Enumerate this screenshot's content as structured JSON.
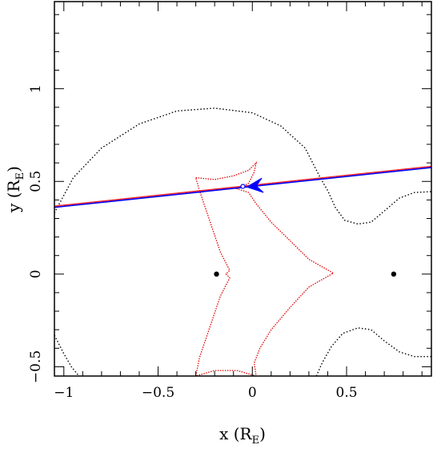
{
  "chart_data": {
    "type": "scatter",
    "xlabel": "x (R",
    "xlabel_sub": "E",
    "xlabel_close": ")",
    "ylabel": "y (R",
    "ylabel_sub": "E",
    "ylabel_close": ")",
    "xlim": [
      -1.05,
      0.95
    ],
    "ylim": [
      -0.55,
      1.47
    ],
    "xticks_major": [
      {
        "value": -1,
        "label": "−1"
      },
      {
        "value": -0.5,
        "label": "−0.5"
      },
      {
        "value": 0,
        "label": "0"
      },
      {
        "value": 0.5,
        "label": "0.5"
      }
    ],
    "yticks_major": [
      {
        "value": -0.5,
        "label": "−0.5"
      },
      {
        "value": 0,
        "label": "0"
      },
      {
        "value": 0.5,
        "label": "0.5"
      },
      {
        "value": 1,
        "label": "1"
      }
    ],
    "minor_tick_step": 0.1,
    "lenses": [
      {
        "x": -0.19,
        "y": 0.0
      },
      {
        "x": 0.75,
        "y": 0.0
      }
    ],
    "colors": {
      "critical": "#000000",
      "caustic": "#e00000",
      "track_red": "#ff2020",
      "track_blue": "#0000ff",
      "arrow": "#0000ff",
      "lens": "#000000"
    },
    "source_track": {
      "start": [
        -1.05,
        0.36
      ],
      "end": [
        0.95,
        0.575
      ],
      "arrow_tip": [
        -0.03,
        0.47
      ],
      "source_point": [
        -0.05,
        0.473
      ]
    },
    "critical_curve_outer": [
      [
        -1.05,
        0.33
      ],
      [
        -0.95,
        0.52
      ],
      [
        -0.8,
        0.68
      ],
      [
        -0.6,
        0.81
      ],
      [
        -0.4,
        0.88
      ],
      [
        -0.2,
        0.895
      ],
      [
        0.0,
        0.87
      ],
      [
        0.15,
        0.8
      ],
      [
        0.28,
        0.68
      ],
      [
        0.36,
        0.52
      ],
      [
        0.4,
        0.45
      ],
      [
        0.44,
        0.36
      ],
      [
        0.49,
        0.29
      ],
      [
        0.56,
        0.27
      ],
      [
        0.63,
        0.28
      ],
      [
        0.7,
        0.34
      ],
      [
        0.78,
        0.41
      ],
      [
        0.86,
        0.44
      ],
      [
        0.95,
        0.445
      ]
    ],
    "critical_curve_lower_left": [
      [
        -1.05,
        -0.33
      ],
      [
        -1.0,
        -0.43
      ],
      [
        -0.96,
        -0.5
      ],
      [
        -0.92,
        -0.55
      ]
    ],
    "critical_curve_lower_right": [
      [
        0.34,
        -0.55
      ],
      [
        0.37,
        -0.48
      ],
      [
        0.42,
        -0.39
      ],
      [
        0.48,
        -0.32
      ],
      [
        0.56,
        -0.29
      ],
      [
        0.63,
        -0.3
      ],
      [
        0.7,
        -0.36
      ],
      [
        0.78,
        -0.42
      ],
      [
        0.86,
        -0.445
      ],
      [
        0.95,
        -0.445
      ]
    ],
    "caustic_curve": [
      [
        -0.3,
        0.52
      ],
      [
        -0.2,
        0.51
      ],
      [
        -0.1,
        0.53
      ],
      [
        -0.02,
        0.56
      ],
      [
        0.02,
        0.6
      ],
      [
        0.01,
        0.55
      ],
      [
        -0.02,
        0.49
      ],
      [
        -0.08,
        0.46
      ],
      [
        -0.02,
        0.44
      ],
      [
        0.02,
        0.38
      ],
      [
        0.1,
        0.28
      ],
      [
        0.2,
        0.18
      ],
      [
        0.3,
        0.08
      ],
      [
        0.43,
        0.005
      ],
      [
        0.3,
        -0.07
      ],
      [
        0.2,
        -0.18
      ],
      [
        0.1,
        -0.3
      ],
      [
        0.04,
        -0.4
      ],
      [
        0.01,
        -0.48
      ],
      [
        0.02,
        -0.55
      ],
      [
        -0.08,
        -0.52
      ],
      [
        -0.2,
        -0.52
      ],
      [
        -0.3,
        -0.55
      ],
      [
        -0.28,
        -0.45
      ],
      [
        -0.23,
        -0.3
      ],
      [
        -0.17,
        -0.12
      ],
      [
        -0.12,
        -0.02
      ],
      [
        -0.14,
        0.0
      ],
      [
        -0.12,
        0.02
      ],
      [
        -0.17,
        0.12
      ],
      [
        -0.23,
        0.3
      ],
      [
        -0.28,
        0.45
      ],
      [
        -0.3,
        0.52
      ]
    ]
  }
}
